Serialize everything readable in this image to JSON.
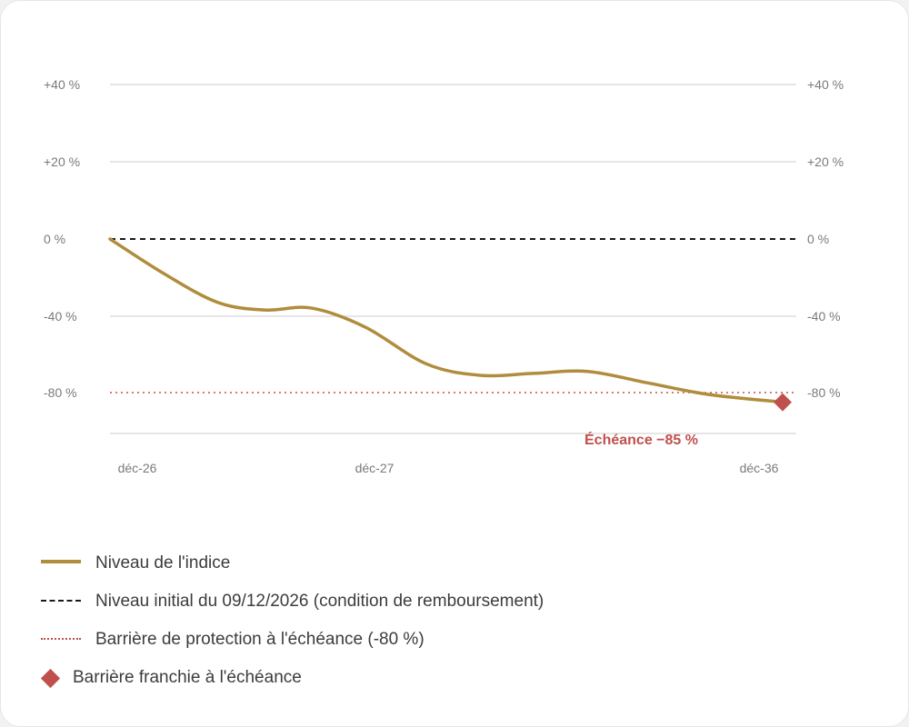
{
  "chart_data": {
    "type": "line",
    "x_ticks": [
      "déc-26",
      "déc-27",
      "déc-36"
    ],
    "y_ticks_left": [
      "+40 %",
      "+20 %",
      "0 %",
      "-40 %",
      "-80 %"
    ],
    "y_ticks_right": [
      "+40 %",
      "+20 %",
      "0 %",
      "-40 %",
      "-80 %"
    ],
    "series": [
      {
        "name": "Niveau de l'indice",
        "color": "#b08d3c",
        "points": [
          {
            "x": 0.0,
            "y": 0
          },
          {
            "x": 0.08,
            "y": -18
          },
          {
            "x": 0.16,
            "y": -33
          },
          {
            "x": 0.23,
            "y": -37
          },
          {
            "x": 0.3,
            "y": -36
          },
          {
            "x": 0.38,
            "y": -46
          },
          {
            "x": 0.47,
            "y": -65
          },
          {
            "x": 0.55,
            "y": -71
          },
          {
            "x": 0.63,
            "y": -70
          },
          {
            "x": 0.71,
            "y": -69
          },
          {
            "x": 0.8,
            "y": -75
          },
          {
            "x": 0.89,
            "y": -81
          },
          {
            "x": 1.0,
            "y": -85
          }
        ]
      }
    ],
    "reference_lines": [
      {
        "name": "Niveau initial du 09/12/2026 (condition de remboursement)",
        "y": 0,
        "style": "dashed",
        "color": "#1a1a1a"
      },
      {
        "name": "Barrière de protection à l'échéance (-80 %)",
        "y": -80,
        "style": "dotted",
        "color": "#c0504d"
      }
    ],
    "marker": {
      "name": "Barrière franchie à l'échéance",
      "x": 1.0,
      "y": -85,
      "shape": "diamond",
      "color": "#c0504d"
    },
    "annotation": {
      "text": "Échéance −85 %"
    },
    "grid": true,
    "legend_position": "bottom-left"
  },
  "legend": {
    "items": [
      {
        "label": "Niveau de l'indice",
        "kind": "solid",
        "color": "#b08d3c"
      },
      {
        "label": "Niveau initial du 09/12/2026 (condition de remboursement)",
        "kind": "dashed",
        "color": "#1a1a1a"
      },
      {
        "label": "Barrière de protection à l'échéance (-80 %)",
        "kind": "dotted",
        "color": "#c0504d"
      },
      {
        "label": "Barrière franchie à l'échéance",
        "kind": "diamond",
        "color": "#c0504d"
      }
    ]
  }
}
